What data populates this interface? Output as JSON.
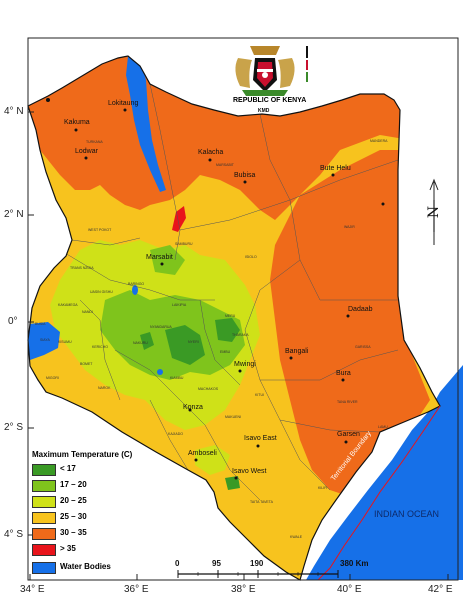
{
  "header": {
    "country": "REPUBLIC OF KENYA",
    "agency": "KMD"
  },
  "axes": {
    "lat_ticks": [
      "4° N",
      "2° N",
      "0°",
      "2° S",
      "4° S"
    ],
    "lon_ticks": [
      "34° E",
      "36° E",
      "38° E",
      "40° E",
      "42° E"
    ]
  },
  "legend": {
    "title": "Maximum Temperature (C)",
    "items": [
      {
        "label": "< 17",
        "color": "#3a9a25"
      },
      {
        "label": "17 – 20",
        "color": "#7fc41c"
      },
      {
        "label": "20 – 25",
        "color": "#cfe118"
      },
      {
        "label": "25 – 30",
        "color": "#f7c31e"
      },
      {
        "label": "30 – 35",
        "color": "#ef6a1a"
      },
      {
        "label": "> 35",
        "color": "#e8141b"
      },
      {
        "label": "Water Bodies",
        "color": "#1670e8"
      }
    ]
  },
  "scale_bar": {
    "labels": [
      "0",
      "95",
      "190",
      "380 Km"
    ]
  },
  "ocean": {
    "label": "INDIAN OCEAN",
    "boundary_label": "Territorial Boundary"
  },
  "north_arrow": {
    "label": "N"
  },
  "towns": [
    {
      "name": "Lokitaung"
    },
    {
      "name": "Kakuma"
    },
    {
      "name": "Lodwar"
    },
    {
      "name": "Kalacha"
    },
    {
      "name": "Bubisa"
    },
    {
      "name": "Bute Helu"
    },
    {
      "name": "Marsabit"
    },
    {
      "name": "Dadaab"
    },
    {
      "name": "Bangali"
    },
    {
      "name": "Mwingi"
    },
    {
      "name": "Bura"
    },
    {
      "name": "Konza"
    },
    {
      "name": "Isavo East"
    },
    {
      "name": "Amboseli"
    },
    {
      "name": "Garsen"
    },
    {
      "name": "Isavo West"
    }
  ],
  "counties": [
    "TURKANA",
    "MARSABIT",
    "MANDERA",
    "WAJIR",
    "ISIOLO",
    "SAMBURU",
    "WEST POKOT",
    "BARINGO",
    "LAIKIPIA",
    "MERU",
    "NAKURU",
    "NAROK",
    "KAJIADO",
    "MAKUENI",
    "KITUI",
    "GARISSA",
    "TANA RIVER",
    "LAMU",
    "KILIFI",
    "KWALE",
    "TAITA TAVETA",
    "EMBU",
    "KIAMBU",
    "MACHAKOS",
    "NYERI",
    "BUSIA",
    "SIAYA",
    "KISUMU",
    "KERICHO",
    "BOMET",
    "TRANS NZOIA",
    "UASIN GISHU",
    "KAKAMEGA",
    "NANDI",
    "MIGORI",
    "THARAKA",
    "NYANDARUA"
  ]
}
